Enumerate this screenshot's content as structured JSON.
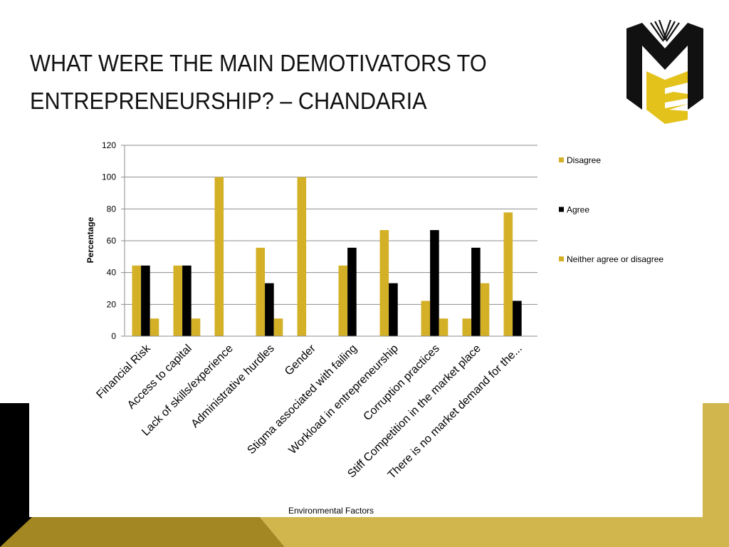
{
  "slide": {
    "title_line1": "WHAT WERE THE MAIN DEMOTIVATORS TO",
    "title_line2": "ENTREPRENEURSHIP? – CHANDARIA"
  },
  "colors": {
    "gold": "#D4B027",
    "black": "#000000",
    "deco_gold": "#D1B64E",
    "deco_dark": "#A38722"
  },
  "logo": {
    "icon": "me-book-logo-icon"
  },
  "chart_data": {
    "type": "bar",
    "categories": [
      "Financial Risk",
      "Access to capital",
      "Lack of skills/experience",
      "Administrative hurdles",
      "Gender",
      "Stigma associated with failing",
      "Workload  in entrepreneurship",
      "Corruption practices",
      "Stiff Competition in the market place",
      "There is no market demand for the..."
    ],
    "series": [
      {
        "name": "Disagree",
        "color": "#D4B027",
        "values": [
          44.4,
          44.4,
          100,
          55.6,
          100,
          44.4,
          66.7,
          22.2,
          11.1,
          77.8
        ]
      },
      {
        "name": "Agree",
        "color": "#000000",
        "values": [
          44.4,
          44.4,
          0,
          33.3,
          0,
          55.6,
          33.3,
          66.7,
          55.6,
          22.2
        ]
      },
      {
        "name": "Neither agree or disagree",
        "color": "#D4B027",
        "values": [
          11.1,
          11.1,
          0,
          11.1,
          0,
          0,
          0,
          11.1,
          33.3,
          0
        ]
      }
    ],
    "xlabel": "Environmental Factors",
    "ylabel": "Percentage",
    "ylim": [
      0,
      120
    ],
    "yticks": [
      "0",
      "20",
      "40",
      "60",
      "80",
      "100",
      "120"
    ],
    "grid": true,
    "legend_position": "right"
  }
}
